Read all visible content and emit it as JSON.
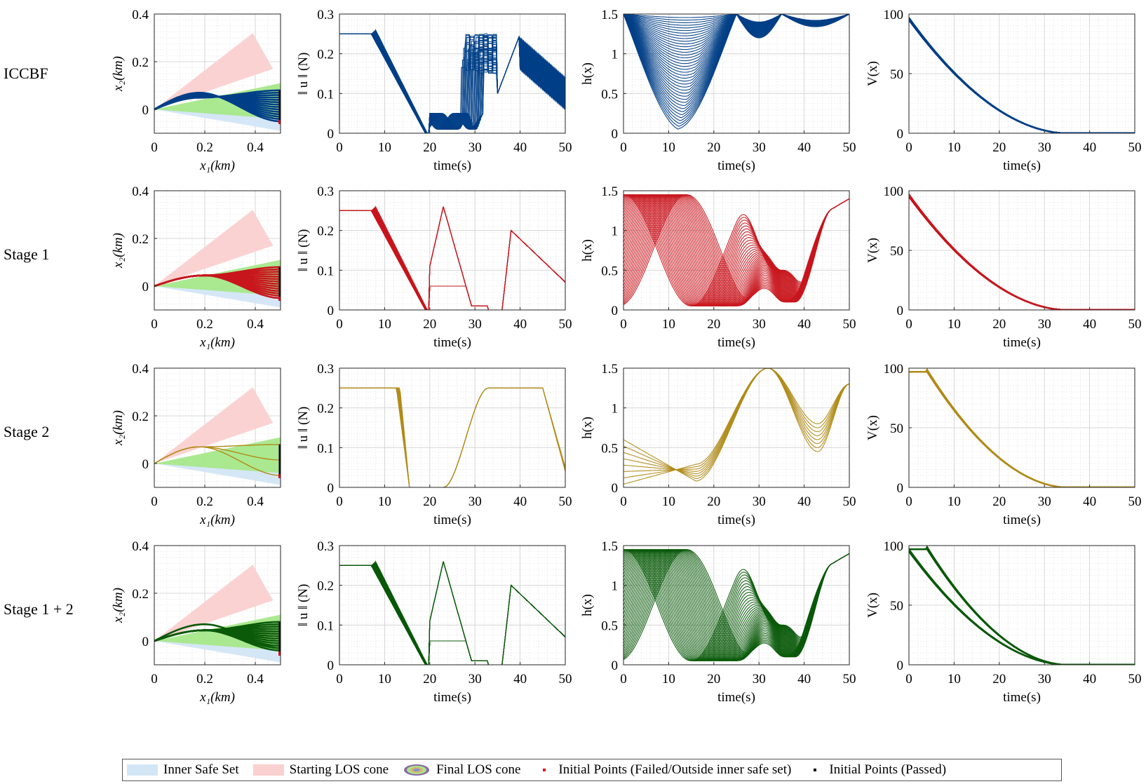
{
  "rows": [
    {
      "label": "ICCBF",
      "color": "#003f87",
      "variant": "iccbf"
    },
    {
      "label": "Stage 1",
      "color": "#c8161d",
      "variant": "stage1"
    },
    {
      "label": "Stage 2",
      "color": "#b08a16",
      "variant": "stage2"
    },
    {
      "label": "Stage 1 + 2",
      "color": "#0a5a0a",
      "variant": "stage12"
    }
  ],
  "legend": {
    "inner_safe_set": "Inner Safe Set",
    "starting_los": "Starting LOS cone",
    "final_los": "Final LOS cone",
    "initial_failed": "Initial Points (Failed/Outside inner safe set)",
    "initial_passed": "Initial Points (Passed)",
    "colors": {
      "inner": "#d3e6f5",
      "start": "#fbd0d0",
      "final": "#a6e88a",
      "failed": "#e8000b",
      "passed": "#000000"
    }
  },
  "chart_data": [
    {
      "type": "area",
      "panel": "trajectory",
      "xlabel": "x₁(km)",
      "ylabel": "x₂(km)",
      "xlim": [
        0,
        0.5
      ],
      "ylim": [
        -0.1,
        0.4
      ],
      "xticks": [
        "0",
        "0.2",
        "0.4"
      ],
      "yticks": [
        "0",
        "0.2",
        "0.4"
      ],
      "starting_los_cone": {
        "apex": [
          0,
          0
        ],
        "upper_end": [
          0.39,
          0.32
        ],
        "lower_end": [
          0.47,
          0.17
        ]
      },
      "final_los_cone": {
        "apex": [
          0,
          0
        ],
        "upper_end": [
          0.5,
          0.11
        ],
        "lower_end": [
          0.5,
          -0.04
        ]
      },
      "inner_safe_set": {
        "apex": [
          0,
          0
        ],
        "upper_end": [
          0.5,
          -0.02
        ],
        "lower_end": [
          0.5,
          -0.09
        ]
      },
      "trajectory_peak": {
        "x": 0.18,
        "y": 0.07
      },
      "end_band": [
        -0.05,
        0.08
      ]
    },
    {
      "type": "line",
      "panel": "control",
      "xlabel": "time(s)",
      "ylabel": "‖ u ‖ (N)",
      "xlim": [
        0,
        50
      ],
      "ylim": [
        0,
        0.3
      ],
      "xticks": [
        "0",
        "10",
        "20",
        "30",
        "40",
        "50"
      ],
      "yticks": [
        "0",
        "0.1",
        "0.2",
        "0.3"
      ],
      "saturation": 0.25
    },
    {
      "type": "line",
      "panel": "cbf",
      "xlabel": "time(s)",
      "ylabel": "h(x)",
      "xlim": [
        0,
        50
      ],
      "ylim": [
        0,
        1.5
      ],
      "xticks": [
        "0",
        "10",
        "20",
        "30",
        "40",
        "50"
      ],
      "yticks": [
        "0",
        "0.5",
        "1",
        "1.5"
      ]
    },
    {
      "type": "line",
      "panel": "lyapunov",
      "xlabel": "time(s)",
      "ylabel": "V(x)",
      "xlim": [
        0,
        50
      ],
      "ylim": [
        0,
        100
      ],
      "xticks": [
        "0",
        "10",
        "20",
        "30",
        "40",
        "50"
      ],
      "yticks": [
        "0",
        "50",
        "100"
      ],
      "start_value": 95,
      "settle_time": 35
    }
  ]
}
